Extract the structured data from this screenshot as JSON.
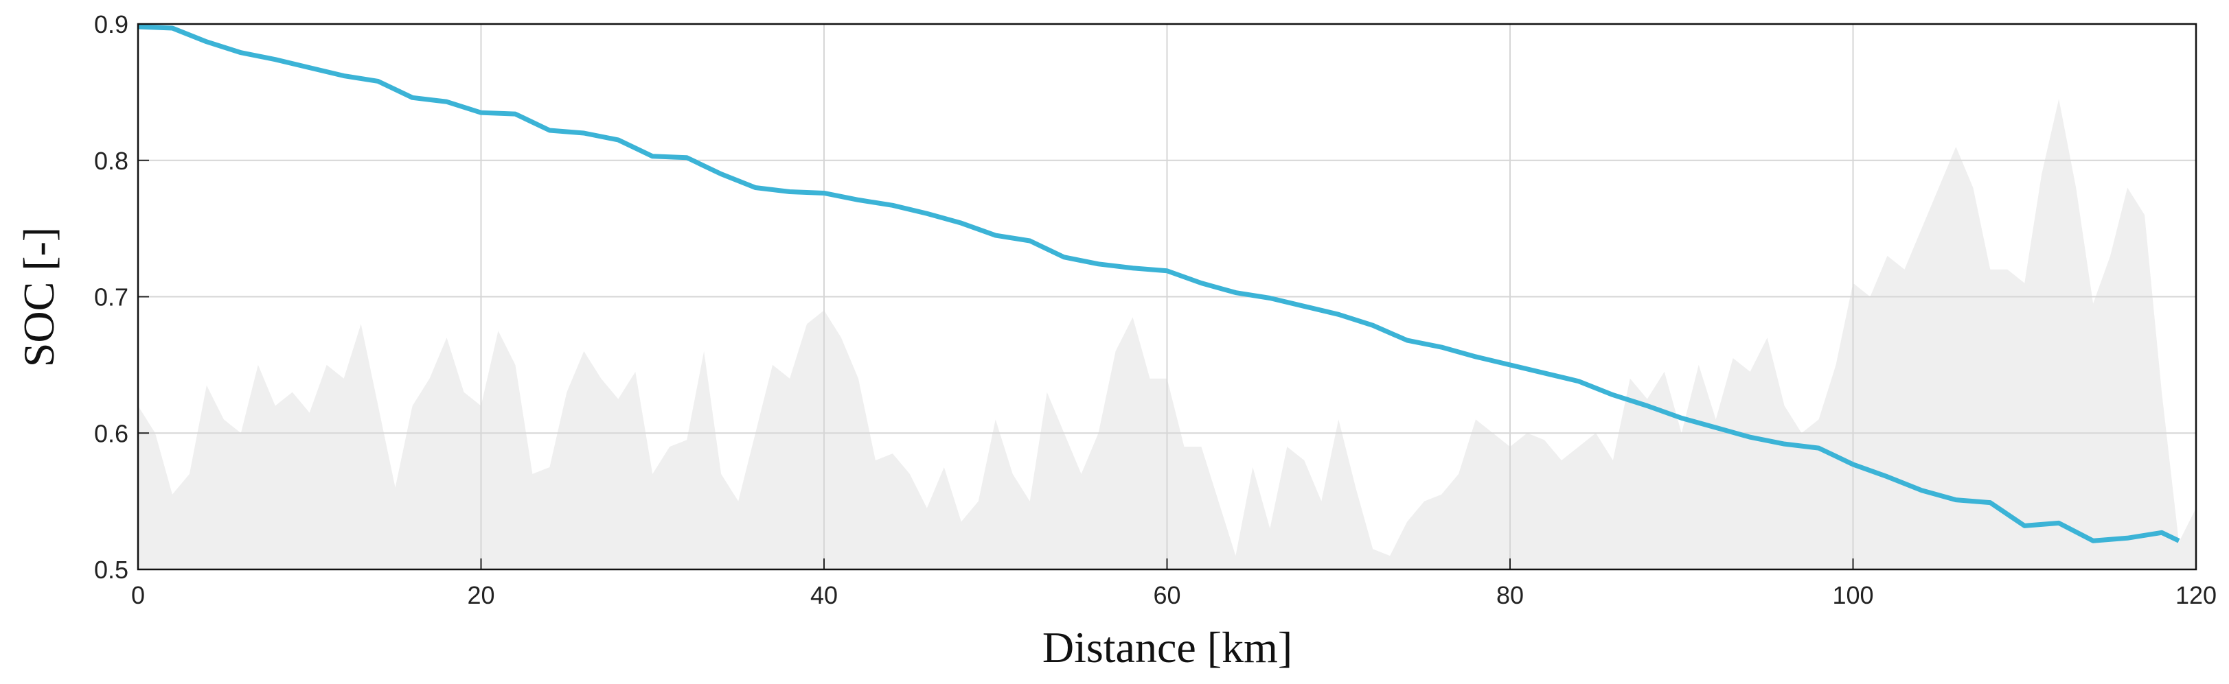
{
  "chart_data": {
    "type": "line",
    "x_label": "Distance [km]",
    "y_label": "SOC [-]",
    "xlim": [
      0,
      120
    ],
    "xticks": [
      0,
      20,
      40,
      60,
      80,
      100,
      120
    ],
    "ylim": [
      0.5,
      0.9
    ],
    "yticks": [
      0.5,
      0.6,
      0.7,
      0.8,
      0.9
    ],
    "grid": true,
    "series": [
      {
        "kind": "area",
        "color": "#efefef",
        "x": [
          0,
          1,
          2,
          3,
          4,
          5,
          6,
          7,
          8,
          9,
          10,
          11,
          12,
          13,
          14,
          15,
          16,
          17,
          18,
          19,
          20,
          21,
          22,
          23,
          24,
          25,
          26,
          27,
          28,
          29,
          30,
          31,
          32,
          33,
          34,
          35,
          36,
          37,
          38,
          39,
          40,
          41,
          42,
          43,
          44,
          45,
          46,
          47,
          48,
          49,
          50,
          51,
          52,
          53,
          54,
          55,
          56,
          57,
          58,
          59,
          60,
          61,
          62,
          63,
          64,
          65,
          66,
          67,
          68,
          69,
          70,
          71,
          72,
          73,
          74,
          75,
          76,
          77,
          78,
          79,
          80,
          81,
          82,
          83,
          84,
          85,
          86,
          87,
          88,
          89,
          90,
          91,
          92,
          93,
          94,
          95,
          96,
          97,
          98,
          99,
          100,
          101,
          102,
          103,
          104,
          105,
          106,
          107,
          108,
          109,
          110,
          111,
          112,
          113,
          114,
          115,
          116,
          117,
          118,
          119,
          120
        ],
        "values": [
          0.62,
          0.6,
          0.555,
          0.57,
          0.635,
          0.61,
          0.6,
          0.65,
          0.62,
          0.63,
          0.615,
          0.65,
          0.64,
          0.68,
          0.62,
          0.56,
          0.62,
          0.64,
          0.67,
          0.63,
          0.62,
          0.675,
          0.65,
          0.57,
          0.575,
          0.63,
          0.66,
          0.64,
          0.625,
          0.645,
          0.57,
          0.59,
          0.595,
          0.66,
          0.57,
          0.55,
          0.6,
          0.65,
          0.64,
          0.68,
          0.69,
          0.67,
          0.64,
          0.58,
          0.585,
          0.57,
          0.545,
          0.575,
          0.535,
          0.55,
          0.61,
          0.57,
          0.55,
          0.63,
          0.6,
          0.57,
          0.6,
          0.66,
          0.685,
          0.64,
          0.64,
          0.59,
          0.59,
          0.55,
          0.51,
          0.575,
          0.53,
          0.59,
          0.58,
          0.55,
          0.61,
          0.56,
          0.515,
          0.51,
          0.535,
          0.55,
          0.555,
          0.57,
          0.61,
          0.6,
          0.59,
          0.6,
          0.595,
          0.58,
          0.59,
          0.6,
          0.58,
          0.64,
          0.625,
          0.645,
          0.6,
          0.65,
          0.61,
          0.655,
          0.645,
          0.67,
          0.62,
          0.6,
          0.61,
          0.65,
          0.71,
          0.7,
          0.73,
          0.72,
          0.75,
          0.78,
          0.81,
          0.78,
          0.72,
          0.72,
          0.71,
          0.79,
          0.845,
          0.78,
          0.695,
          0.73,
          0.78,
          0.76,
          0.63,
          0.52,
          0.545
        ]
      },
      {
        "kind": "line",
        "color": "#3bb3d6",
        "x": [
          0,
          2,
          4,
          6,
          8,
          10,
          12,
          14,
          16,
          18,
          20,
          22,
          24,
          26,
          28,
          30,
          32,
          34,
          36,
          38,
          40,
          42,
          44,
          46,
          48,
          50,
          52,
          54,
          56,
          58,
          60,
          62,
          64,
          66,
          68,
          70,
          72,
          74,
          76,
          78,
          80,
          82,
          84,
          86,
          88,
          90,
          92,
          94,
          96,
          98,
          100,
          102,
          104,
          106,
          108,
          110,
          112,
          114,
          116,
          118,
          119
        ],
        "values": [
          0.898,
          0.897,
          0.887,
          0.879,
          0.874,
          0.868,
          0.862,
          0.858,
          0.846,
          0.843,
          0.835,
          0.834,
          0.822,
          0.82,
          0.815,
          0.803,
          0.802,
          0.79,
          0.78,
          0.777,
          0.776,
          0.771,
          0.767,
          0.761,
          0.754,
          0.745,
          0.741,
          0.729,
          0.724,
          0.721,
          0.719,
          0.71,
          0.703,
          0.699,
          0.693,
          0.687,
          0.679,
          0.668,
          0.663,
          0.656,
          0.65,
          0.644,
          0.638,
          0.628,
          0.62,
          0.611,
          0.604,
          0.597,
          0.592,
          0.589,
          0.577,
          0.568,
          0.558,
          0.551,
          0.549,
          0.532,
          0.534,
          0.521,
          0.523,
          0.527,
          0.521
        ]
      }
    ]
  }
}
